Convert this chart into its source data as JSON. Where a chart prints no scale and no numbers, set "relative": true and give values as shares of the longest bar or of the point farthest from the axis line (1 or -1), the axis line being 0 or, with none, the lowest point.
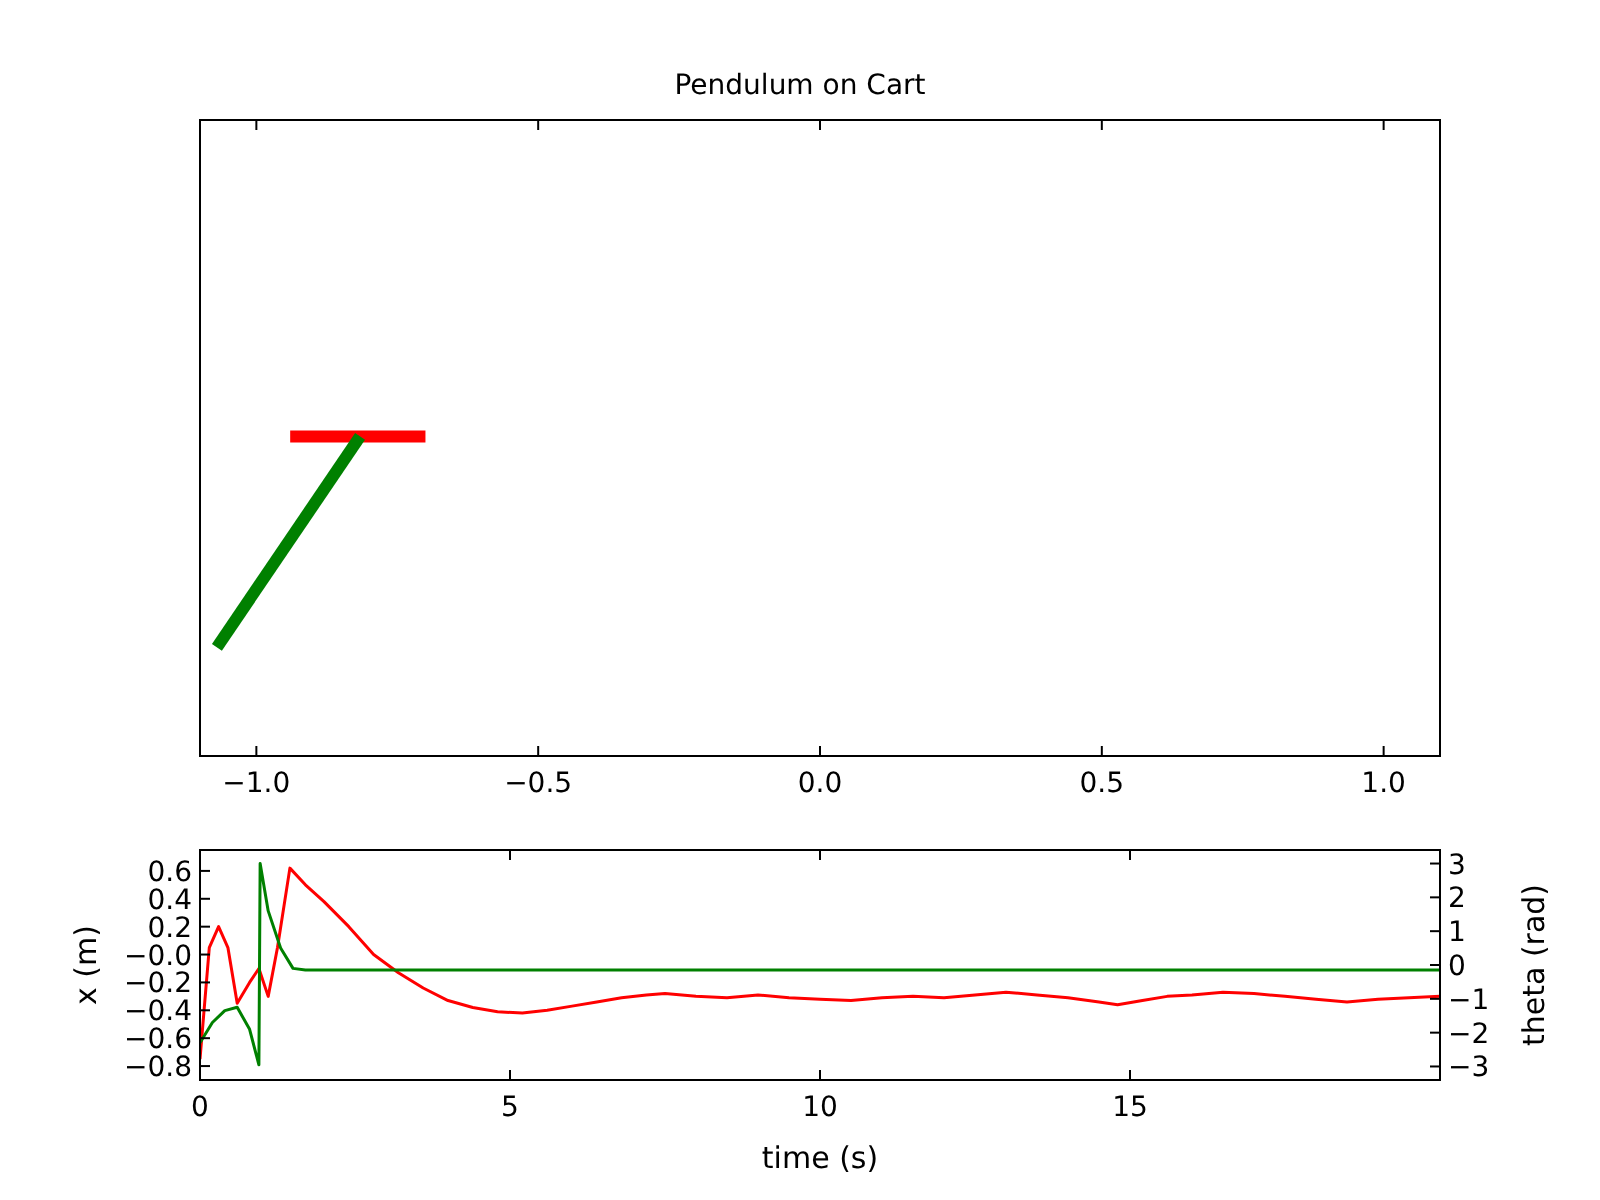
{
  "chart_data": [
    {
      "type": "line",
      "title": "Pendulum on Cart",
      "relative": true,
      "tick_labels": "x",
      "xlim": [
        -1.1,
        1.1
      ],
      "xticks": [
        {
          "value": -1.0,
          "label": "−1.0"
        },
        {
          "value": -0.5,
          "label": "−0.5"
        },
        {
          "value": 0.0,
          "label": "0.0"
        },
        {
          "value": 0.5,
          "label": "0.5"
        },
        {
          "value": 1.0,
          "label": "1.0"
        }
      ],
      "series": [
        {
          "color": "#ff0000",
          "x": [
            -0.94,
            -0.7
          ],
          "values": [
            1,
            1
          ]
        },
        {
          "color": "#008000",
          "x": [
            -0.816,
            -1.07
          ],
          "values": [
            1,
            0.34
          ]
        }
      ]
    },
    {
      "type": "line",
      "xlabel": "time (s)",
      "ylabel": "x (m)",
      "y2label": "theta (rad)",
      "xlim": [
        0,
        20
      ],
      "xticks": [
        0,
        5,
        10,
        15
      ],
      "ylim": [
        -0.9,
        0.75
      ],
      "yticks": [
        0.6,
        0.4,
        0.2,
        {
          "value": 0,
          "label": "−0.0"
        },
        {
          "value": -0.2,
          "label": "−0.2"
        },
        {
          "value": -0.4,
          "label": "−0.4"
        },
        {
          "value": -0.6,
          "label": "−0.6"
        },
        {
          "value": -0.8,
          "label": "−0.8"
        }
      ],
      "y2lim": [
        -3.4,
        3.4
      ],
      "y2ticks": [
        3,
        2,
        1,
        0,
        {
          "value": -1,
          "label": "−1"
        },
        {
          "value": -2,
          "label": "−2"
        },
        {
          "value": -3,
          "label": "−3"
        }
      ],
      "series": [
        {
          "color": "#ff0000",
          "x": [
            0,
            0.15,
            0.3,
            0.45,
            0.6,
            0.8,
            0.95,
            1.1,
            1.25,
            1.45,
            1.7,
            2.0,
            2.4,
            2.8,
            3.2,
            3.6,
            4.0,
            4.4,
            4.8,
            5.2,
            5.6,
            6.0,
            6.4,
            6.8,
            7.2,
            7.5,
            8.0,
            8.5,
            9.0,
            9.5,
            10.0,
            10.5,
            11.0,
            11.5,
            12.0,
            12.5,
            13.0,
            13.5,
            14.0,
            14.5,
            14.8,
            15.2,
            15.6,
            16.0,
            16.5,
            17.0,
            17.5,
            18.0,
            18.5,
            19.0,
            19.5,
            20.0
          ],
          "values": [
            -0.75,
            0.05,
            0.2,
            0.05,
            -0.35,
            -0.2,
            -0.1,
            -0.3,
            0.05,
            0.62,
            0.5,
            0.38,
            0.2,
            0.0,
            -0.13,
            -0.24,
            -0.33,
            -0.38,
            -0.41,
            -0.42,
            -0.4,
            -0.37,
            -0.34,
            -0.31,
            -0.29,
            -0.28,
            -0.3,
            -0.31,
            -0.29,
            -0.31,
            -0.32,
            -0.33,
            -0.31,
            -0.3,
            -0.31,
            -0.29,
            -0.27,
            -0.29,
            -0.31,
            -0.34,
            -0.36,
            -0.33,
            -0.3,
            -0.29,
            -0.27,
            -0.28,
            -0.3,
            -0.32,
            -0.34,
            -0.32,
            -0.31,
            -0.3
          ]
        },
        {
          "color": "#008000",
          "axis": "y2",
          "x": [
            0,
            0.2,
            0.4,
            0.6,
            0.8,
            0.95,
            0.97,
            1.1,
            1.3,
            1.5,
            1.7,
            2,
            5,
            10,
            15,
            20
          ],
          "values": [
            -2.3,
            -1.7,
            -1.35,
            -1.25,
            -1.9,
            -2.95,
            3.0,
            1.6,
            0.5,
            -0.1,
            -0.15,
            -0.15,
            -0.15,
            -0.15,
            -0.15,
            -0.15
          ]
        }
      ]
    }
  ]
}
